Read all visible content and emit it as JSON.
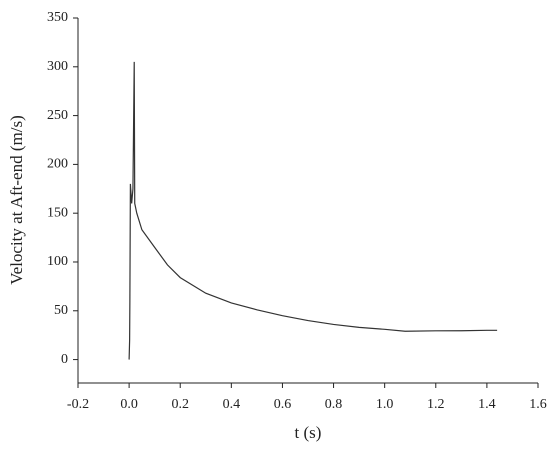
{
  "chart_data": {
    "type": "line",
    "x_label": "t (s)",
    "y_label": "Velocity at Aft-end (m/s)",
    "x": [
      0,
      0.002,
      0.003,
      0.005,
      0.01,
      0.015,
      0.02,
      0.022,
      0.03,
      0.05,
      0.1,
      0.15,
      0.2,
      0.3,
      0.4,
      0.5,
      0.6,
      0.7,
      0.8,
      0.9,
      1.0,
      1.08,
      1.2,
      1.3,
      1.4,
      1.44
    ],
    "series": [
      {
        "color": "#333333",
        "values": [
          0,
          20,
          60,
          180,
          160,
          175,
          305,
          160,
          150,
          133,
          115,
          97,
          84,
          68,
          58,
          51,
          45,
          40,
          36,
          33,
          31,
          29,
          29.5,
          29.5,
          30,
          30
        ]
      }
    ],
    "xlim": [
      -0.2,
      1.6
    ],
    "xticks": [
      -0.2,
      {
        "value": 0,
        "label": "0.0"
      },
      0.2,
      0.4,
      0.6,
      0.8,
      {
        "value": 1,
        "label": "1.0"
      },
      1.2,
      1.4,
      1.6
    ],
    "ylim": [
      -24,
      350
    ],
    "yticks": [
      0,
      50,
      100,
      150,
      200,
      250,
      300,
      350
    ]
  }
}
